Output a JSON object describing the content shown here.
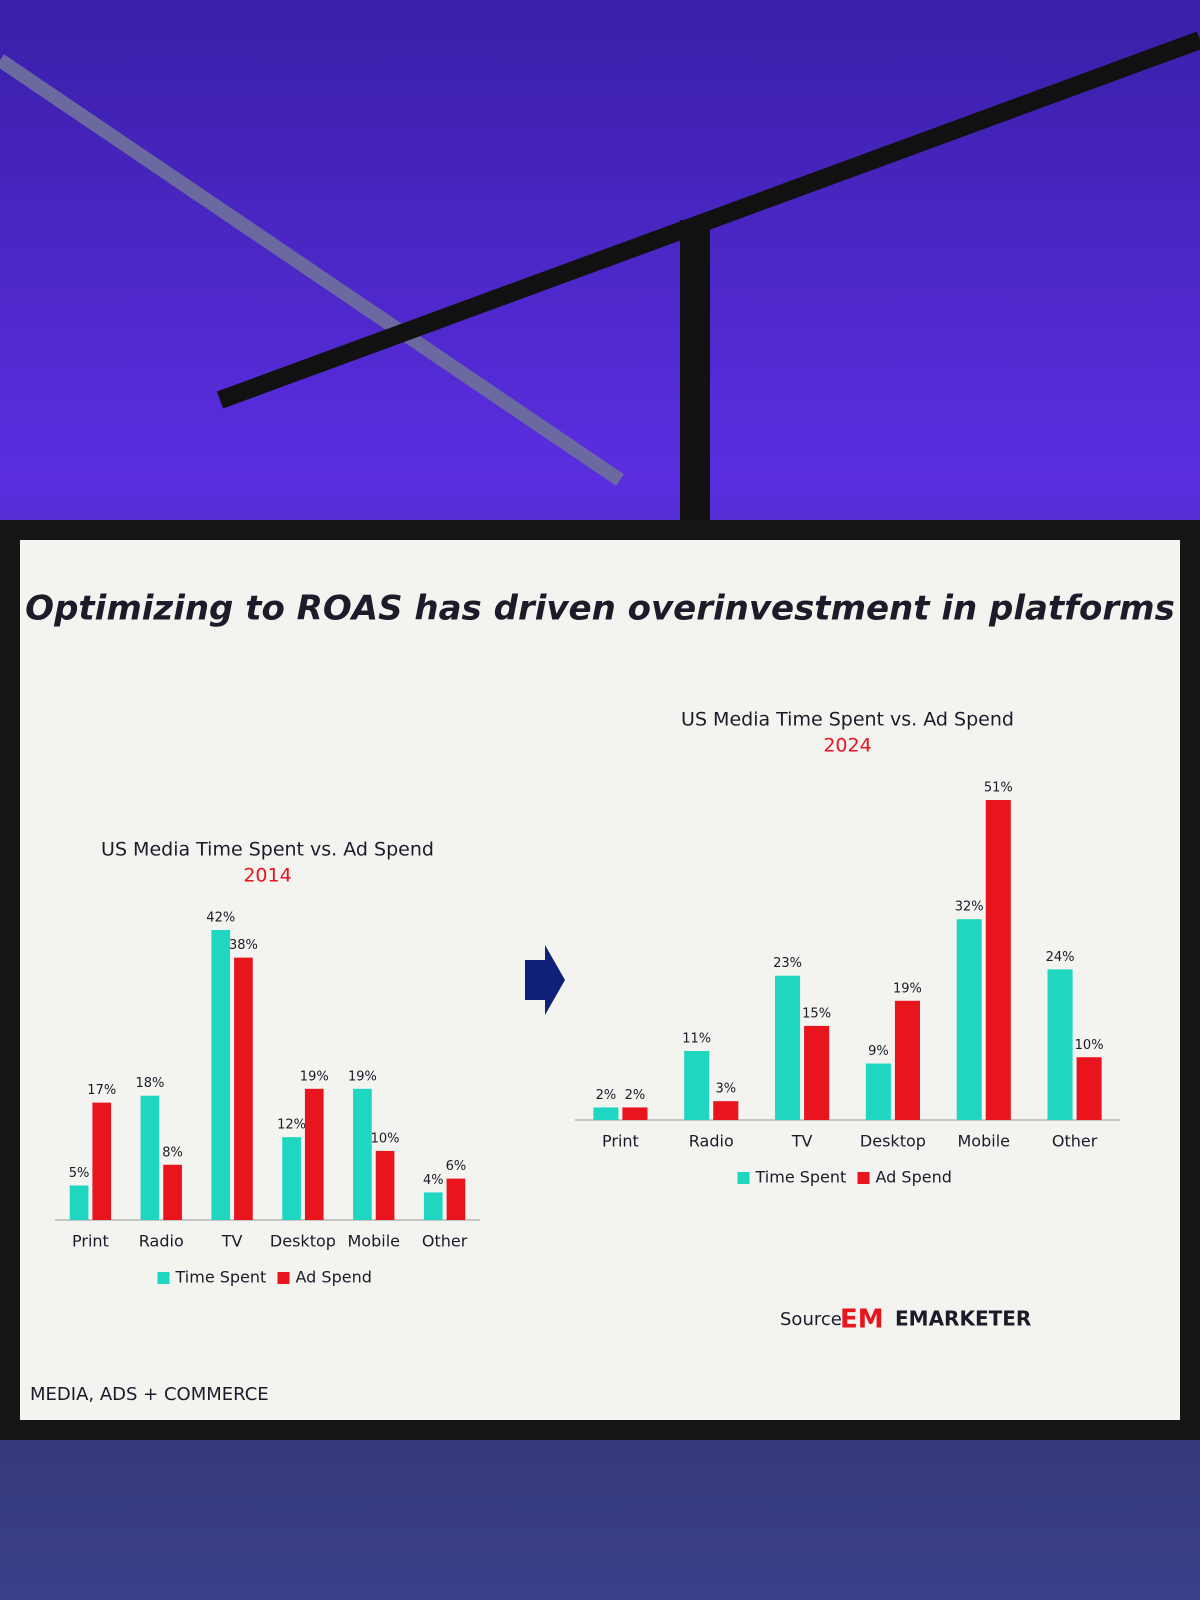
{
  "slide": {
    "title": "Optimizing to ROAS has driven overinvestment in platforms",
    "source": "Source:",
    "logo": "EM",
    "brand": "EMARKETER",
    "footer": "MEDIA, ADS + COMMERCE"
  },
  "chart_data": [
    {
      "type": "bar",
      "title": "US Media Time Spent vs. Ad Spend",
      "subtitle": "2014",
      "categories": [
        "Print",
        "Radio",
        "TV",
        "Desktop",
        "Mobile",
        "Other"
      ],
      "series": [
        {
          "name": "Time Spent",
          "color": "#1fd6c0",
          "values": [
            5,
            18,
            42,
            12,
            19,
            4
          ],
          "value_labels": [
            "5%",
            "18%",
            "42%",
            "12%",
            "19%",
            "4%"
          ]
        },
        {
          "name": "Ad Spend",
          "color": "#e8141e",
          "values": [
            17,
            8,
            38,
            19,
            10,
            6
          ],
          "value_labels": [
            "17%",
            "8%",
            "38%",
            "19%",
            "10%",
            "6%"
          ]
        }
      ]
    },
    {
      "type": "bar",
      "title": "US Media Time Spent vs. Ad Spend",
      "subtitle": "2024",
      "categories": [
        "Print",
        "Radio",
        "TV",
        "Desktop",
        "Mobile",
        "Other"
      ],
      "series": [
        {
          "name": "Time Spent",
          "color": "#1fd6c0",
          "values": [
            2,
            11,
            23,
            9,
            32,
            24
          ],
          "value_labels": [
            "2%",
            "11%",
            "23%",
            "9%",
            "32%",
            "24%"
          ]
        },
        {
          "name": "Ad Spend",
          "color": "#e8141e",
          "values": [
            2,
            3,
            15,
            19,
            51,
            10
          ],
          "value_labels": [
            "2%",
            "3%",
            "15%",
            "19%",
            "51%",
            "10%"
          ]
        }
      ]
    }
  ]
}
